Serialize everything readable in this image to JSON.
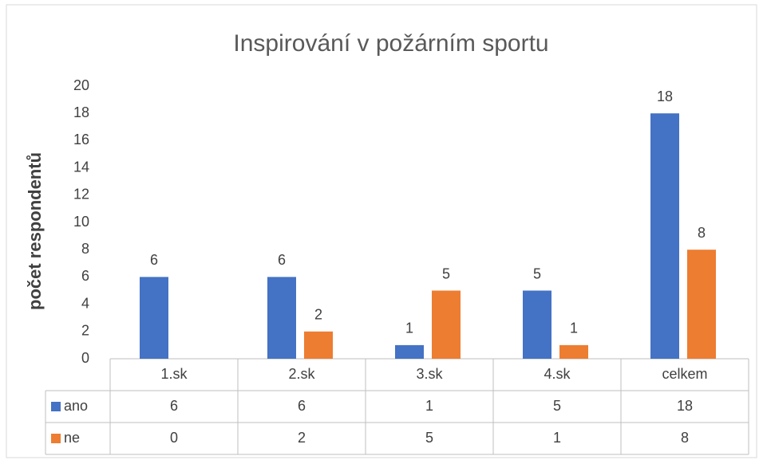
{
  "chart_data": {
    "type": "bar",
    "title": "Inspirování v požárním sportu",
    "y_label": "počet respondentů",
    "categories": [
      "1.sk",
      "2.sk",
      "3.sk",
      "4.sk",
      "celkem"
    ],
    "series": [
      {
        "name": "ano",
        "color": "#4472c4",
        "values": [
          6,
          6,
          1,
          5,
          18
        ]
      },
      {
        "name": "ne",
        "color": "#ed7d31",
        "values": [
          0,
          2,
          5,
          1,
          8
        ]
      }
    ],
    "ylim": [
      0,
      20
    ],
    "yticks": [
      0,
      2,
      4,
      6,
      8,
      10,
      12,
      14,
      16,
      18,
      20
    ],
    "grid": false,
    "data_table": true
  }
}
